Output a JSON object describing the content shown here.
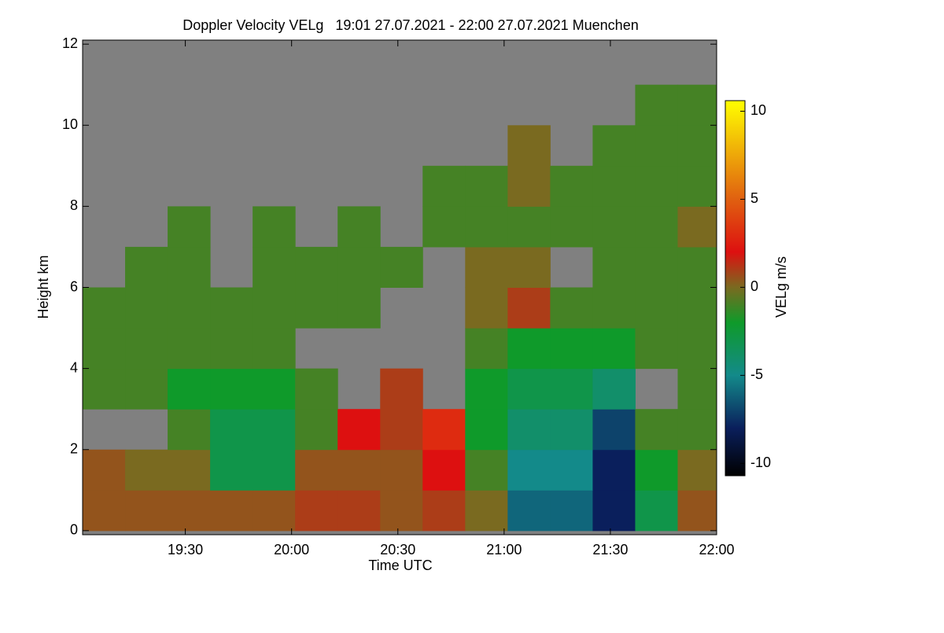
{
  "chart_data": {
    "type": "heatmap",
    "title": "Doppler Velocity VELg   19:01 27.07.2021 - 22:00 27.07.2021 Muenchen",
    "xlabel": "Time UTC",
    "ylabel": "Height km",
    "colorbar_label": "VELg m/s",
    "xlim": [
      1141,
      1320
    ],
    "xticks": [
      {
        "value": 1170,
        "label": "19:30"
      },
      {
        "value": 1200,
        "label": "20:00"
      },
      {
        "value": 1230,
        "label": "20:30"
      },
      {
        "value": 1260,
        "label": "21:00"
      },
      {
        "value": 1290,
        "label": "21:30"
      },
      {
        "value": 1320,
        "label": "22:00"
      }
    ],
    "ylim": [
      -0.1,
      12.1
    ],
    "yticks": [
      0,
      2,
      4,
      6,
      8,
      10,
      12
    ],
    "zlim": [
      -10.7,
      10.6
    ],
    "zticks": [
      10,
      5,
      0,
      -5,
      -10
    ],
    "background": "#808080",
    "colorscale": [
      [
        -10.7,
        "#000000"
      ],
      [
        -8,
        "#0a1f5c"
      ],
      [
        -5,
        "#138a8a"
      ],
      [
        -2,
        "#0f9a2a"
      ],
      [
        0,
        "#7a6a20"
      ],
      [
        2,
        "#dd1010"
      ],
      [
        5,
        "#e06010"
      ],
      [
        10.6,
        "#ffff00"
      ]
    ],
    "x_edges": [
      1141,
      1153,
      1165,
      1177,
      1189,
      1201,
      1213,
      1225,
      1237,
      1249,
      1261,
      1273,
      1285,
      1297,
      1309,
      1320
    ],
    "y_edges": [
      0,
      1,
      2,
      3,
      4,
      5,
      6,
      7,
      8,
      9,
      10,
      11,
      12
    ],
    "z": [
      [
        0.5,
        0.5,
        0.5,
        0.5,
        0.5,
        1,
        1,
        0.5,
        1,
        0,
        -6,
        -6,
        -8,
        -3,
        0.5
      ],
      [
        0.5,
        0,
        0,
        -3,
        -3,
        0.5,
        0.5,
        0.5,
        2,
        -1,
        -5,
        -5,
        -8,
        -2,
        0
      ],
      [
        null,
        null,
        -1,
        -3,
        -3,
        -1,
        2,
        1,
        3,
        -2,
        -4,
        -4,
        -7,
        -1,
        -1
      ],
      [
        -1,
        -1,
        -2,
        -2,
        -2,
        -1,
        null,
        1,
        null,
        -2,
        -3,
        -3,
        -4,
        null,
        -1
      ],
      [
        -1,
        -1,
        -1,
        -1,
        -1,
        null,
        null,
        null,
        null,
        -1,
        -2,
        -2,
        -2,
        -1,
        -1
      ],
      [
        -1,
        -1,
        -1,
        -1,
        -1,
        -1,
        -1,
        null,
        null,
        0,
        1,
        -1,
        -1,
        -1,
        -1
      ],
      [
        null,
        -1,
        -1,
        null,
        -1,
        -1,
        -1,
        -1,
        null,
        0,
        0,
        null,
        -1,
        -1,
        -1
      ],
      [
        null,
        null,
        -1,
        null,
        -1,
        null,
        -1,
        null,
        -1,
        -1,
        -1,
        -1,
        -1,
        -1,
        0
      ],
      [
        null,
        null,
        null,
        null,
        null,
        null,
        null,
        null,
        -1,
        -1,
        0,
        -1,
        -1,
        -1,
        -1
      ],
      [
        null,
        null,
        null,
        null,
        null,
        null,
        null,
        null,
        null,
        null,
        0,
        null,
        -1,
        -1,
        -1
      ],
      [
        null,
        null,
        null,
        null,
        null,
        null,
        null,
        null,
        null,
        null,
        null,
        null,
        null,
        -1,
        -1
      ],
      [
        null,
        null,
        null,
        null,
        null,
        null,
        null,
        null,
        null,
        null,
        null,
        null,
        null,
        null,
        null
      ]
    ]
  }
}
